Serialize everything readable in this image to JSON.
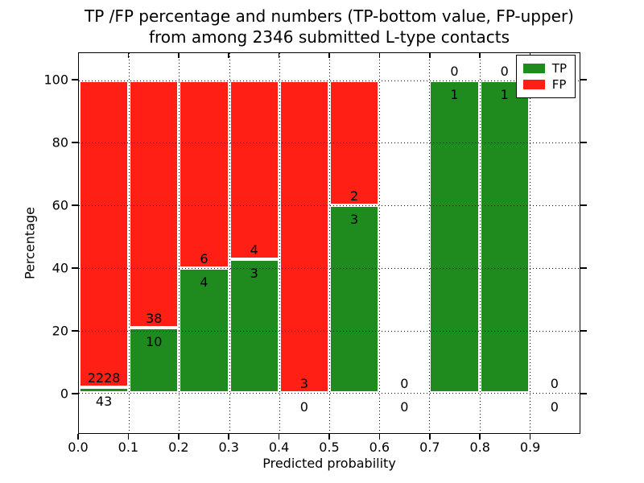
{
  "title": {
    "line1": "TP /FP percentage and numbers (TP-bottom value, FP-upper)",
    "line2": "from among 2346 submitted L-type contacts"
  },
  "axes": {
    "xlabel": "Predicted probability",
    "ylabel": "Percentage",
    "x_tick_labels": [
      "0.0",
      "0.1",
      "0.2",
      "0.3",
      "0.4",
      "0.5",
      "0.6",
      "0.7",
      "0.8",
      "0.9"
    ],
    "x_tick_values": [
      0.0,
      0.1,
      0.2,
      0.3,
      0.4,
      0.5,
      0.6,
      0.7,
      0.8,
      0.9
    ],
    "y_tick_labels": [
      "0",
      "20",
      "40",
      "60",
      "80",
      "100"
    ],
    "y_tick_values": [
      0,
      20,
      40,
      60,
      80,
      100
    ],
    "xlim": [
      0.0,
      1.0
    ],
    "ylim": [
      -12.8,
      108.7
    ],
    "grid": "dotted black, horizontal every 20%, vertical every 0.1"
  },
  "legend": {
    "position": "upper-right",
    "items": [
      {
        "label": "TP",
        "color": "#1f8b1f"
      },
      {
        "label": "FP",
        "color": "#ff1f14"
      }
    ]
  },
  "colors": {
    "tp": "#1f8b1f",
    "fp": "#ff1f14",
    "bar_edge": "#ffffff",
    "background": "#ffffff",
    "text": "#000000"
  },
  "chart_data": {
    "type": "bar",
    "stacked": true,
    "bin_width": 0.1,
    "total_contacts": 2346,
    "title": "TP /FP percentage and numbers (TP-bottom value, FP-upper) from among 2346 submitted L-type contacts",
    "xlabel": "Predicted probability",
    "ylabel": "Percentage",
    "ylim": [
      -12.8,
      108.7
    ],
    "series": [
      {
        "name": "TP",
        "color": "#1f8b1f",
        "position": "bottom"
      },
      {
        "name": "FP",
        "color": "#ff1f14",
        "position": "top"
      }
    ],
    "bins": [
      {
        "range": [
          0.0,
          0.1
        ],
        "tp": 43,
        "fp": 2228,
        "tp_pct": 1.9,
        "fp_pct": 98.1
      },
      {
        "range": [
          0.1,
          0.2
        ],
        "tp": 10,
        "fp": 38,
        "tp_pct": 20.8,
        "fp_pct": 79.2
      },
      {
        "range": [
          0.2,
          0.3
        ],
        "tp": 4,
        "fp": 6,
        "tp_pct": 40.0,
        "fp_pct": 60.0
      },
      {
        "range": [
          0.3,
          0.4
        ],
        "tp": 3,
        "fp": 4,
        "tp_pct": 42.9,
        "fp_pct": 57.1
      },
      {
        "range": [
          0.4,
          0.5
        ],
        "tp": 0,
        "fp": 3,
        "tp_pct": 0.0,
        "fp_pct": 100.0
      },
      {
        "range": [
          0.5,
          0.6
        ],
        "tp": 3,
        "fp": 2,
        "tp_pct": 60.0,
        "fp_pct": 40.0
      },
      {
        "range": [
          0.6,
          0.7
        ],
        "tp": 0,
        "fp": 0,
        "tp_pct": 0.0,
        "fp_pct": 0.0
      },
      {
        "range": [
          0.7,
          0.8
        ],
        "tp": 1,
        "fp": 0,
        "tp_pct": 100.0,
        "fp_pct": 0.0
      },
      {
        "range": [
          0.8,
          0.9
        ],
        "tp": 1,
        "fp": 0,
        "tp_pct": 100.0,
        "fp_pct": 0.0
      },
      {
        "range": [
          0.9,
          1.0
        ],
        "tp": 0,
        "fp": 0,
        "tp_pct": 0.0,
        "fp_pct": 0.0
      }
    ]
  }
}
